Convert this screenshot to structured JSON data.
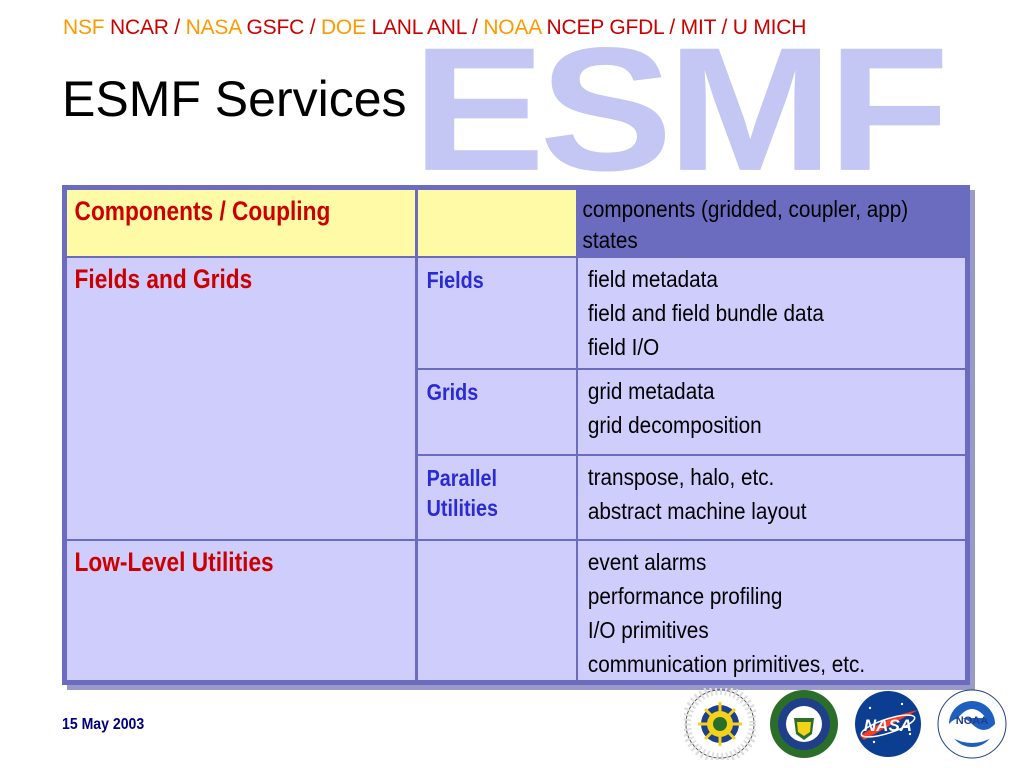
{
  "header": {
    "segments": [
      {
        "text": "NSF",
        "color": "#ff9900"
      },
      {
        "text": " NCAR / ",
        "color": "#cc0000"
      },
      {
        "text": "NASA",
        "color": "#ff9900"
      },
      {
        "text": " GSFC / ",
        "color": "#cc0000"
      },
      {
        "text": "DOE",
        "color": "#ff9900"
      },
      {
        "text": " LANL ANL / ",
        "color": "#cc0000"
      },
      {
        "text": "NOAA",
        "color": "#ff9900"
      },
      {
        "text": " NCEP GFDL / MIT / U MICH",
        "color": "#cc0000"
      }
    ]
  },
  "watermark": "ESMF",
  "title": "ESMF Services",
  "table": {
    "rows": [
      {
        "category": "Components / Coupling",
        "subs": [
          {
            "label": "",
            "items": [
              "components (gridded, coupler, app)",
              "states"
            ]
          }
        ]
      },
      {
        "category": "Fields and Grids",
        "subs": [
          {
            "label": "Fields",
            "items": [
              "field metadata",
              "field and field bundle data",
              "field I/O"
            ]
          },
          {
            "label": "Grids",
            "items": [
              "grid metadata",
              "grid decomposition"
            ]
          },
          {
            "label": "Parallel\nUtilities",
            "items": [
              "transpose, halo, etc.",
              "abstract machine layout"
            ]
          }
        ]
      },
      {
        "category": "Low-Level Utilities",
        "subs": [
          {
            "label": "",
            "items": [
              "event alarms",
              "performance profiling",
              "I/O primitives",
              "communication primitives, etc."
            ]
          }
        ]
      }
    ]
  },
  "footer": {
    "date": "15 May 2003"
  },
  "logos": [
    {
      "name": "nsf-logo"
    },
    {
      "name": "doe-logo"
    },
    {
      "name": "nasa-logo"
    },
    {
      "name": "noaa-logo"
    }
  ],
  "colors": {
    "accent_orange": "#ff9900",
    "accent_red": "#cc0000",
    "sub_blue": "#2b2bd6",
    "cell_lavender": "#cfcdfb",
    "cell_yellow": "#fffaa5",
    "border": "#6b6bbf"
  }
}
